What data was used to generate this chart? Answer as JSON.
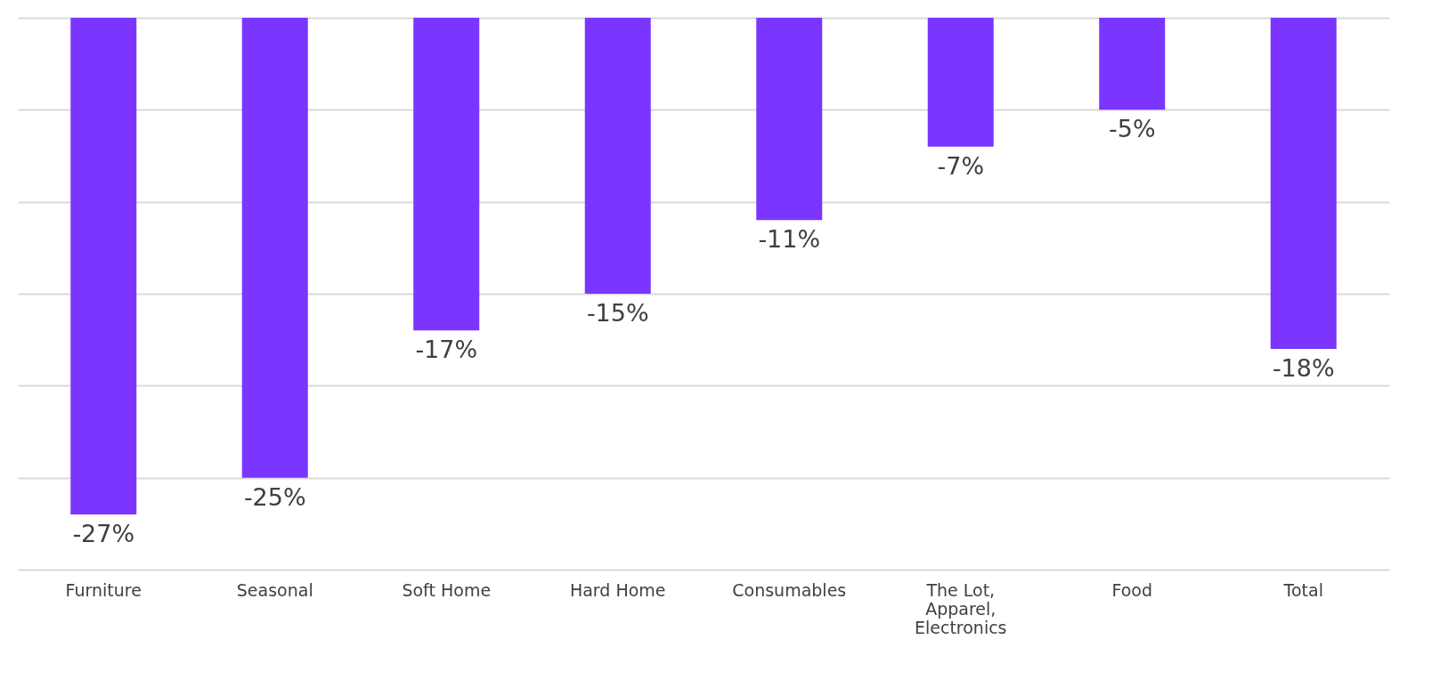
{
  "chart_data": {
    "type": "bar",
    "categories": [
      "Furniture",
      "Seasonal",
      "Soft Home",
      "Hard Home",
      "Consumables",
      "The Lot, Apparel, Electronics",
      "Food",
      "Total"
    ],
    "values": [
      -27,
      -25,
      -17,
      -15,
      -11,
      -7,
      -5,
      -18
    ],
    "value_labels": [
      "-27%",
      "-25%",
      "-17%",
      "-15%",
      "-11%",
      "-7%",
      "-5%",
      "-18%"
    ],
    "color": "#7b35ff",
    "ylim": [
      -30,
      0
    ],
    "yticks": [
      {
        "value": -30,
        "label": null
      },
      {
        "value": -25,
        "label": null
      },
      {
        "value": -20,
        "label": null
      },
      {
        "value": -15,
        "label": null
      },
      {
        "value": -10,
        "label": null
      },
      {
        "value": -5,
        "label": null
      },
      {
        "value": 0,
        "label": null
      }
    ],
    "grid": "y",
    "tick_labels": "x"
  }
}
